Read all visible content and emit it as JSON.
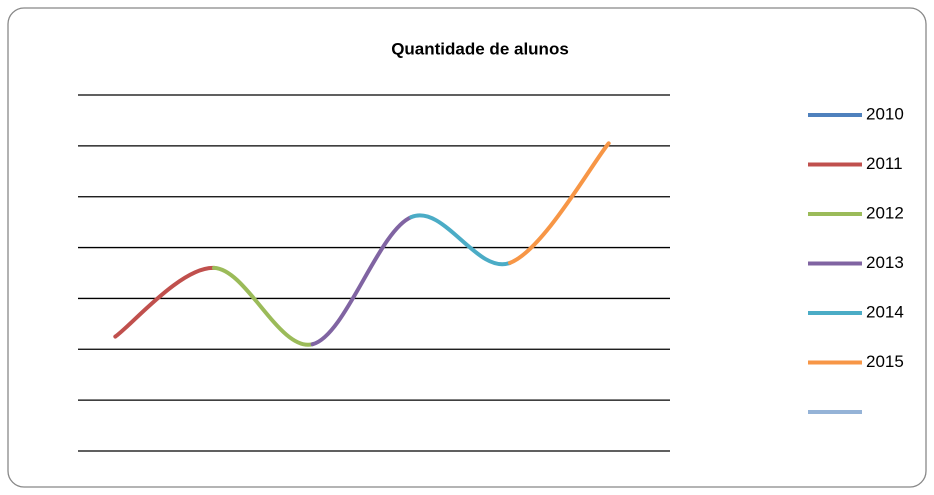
{
  "chart_data": {
    "type": "line",
    "title": "Quantidade de alunos",
    "ylim": [
      0,
      7
    ],
    "yticks": [
      0,
      1,
      2,
      3,
      4,
      5,
      6,
      7
    ],
    "grid": true,
    "smooth": true,
    "legend": "right",
    "series": [
      {
        "name": "2010",
        "color": "#4f81bd",
        "values": [
          null,
          null,
          null,
          null,
          null,
          null
        ]
      },
      {
        "name": "2011",
        "color": "#c0504d",
        "values": [
          2.25,
          3.6,
          null,
          null,
          null,
          null
        ]
      },
      {
        "name": "2012",
        "color": "#9bbb59",
        "values": [
          null,
          3.6,
          2.1,
          null,
          null,
          null
        ]
      },
      {
        "name": "2013",
        "color": "#8064a2",
        "values": [
          null,
          null,
          2.1,
          4.6,
          null,
          null
        ]
      },
      {
        "name": "2014",
        "color": "#4bacc6",
        "values": [
          null,
          null,
          null,
          4.6,
          3.7,
          null
        ]
      },
      {
        "name": "2015",
        "color": "#f79646",
        "values": [
          null,
          null,
          null,
          null,
          3.7,
          6.05
        ]
      },
      {
        "name": null,
        "color": "#95b3d7",
        "values": [
          null,
          null,
          null,
          null,
          null,
          null
        ]
      }
    ]
  }
}
